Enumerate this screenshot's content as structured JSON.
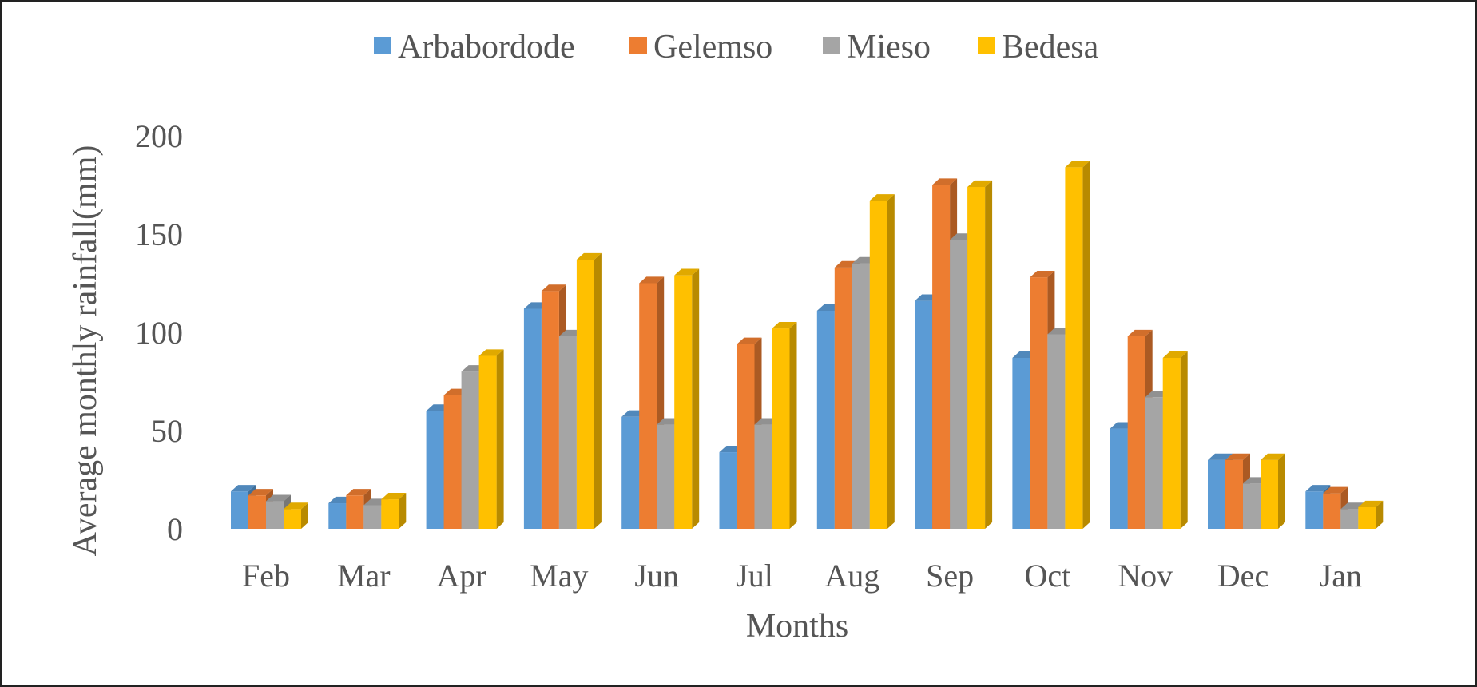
{
  "chart_data": {
    "type": "bar",
    "title": "",
    "xlabel": "Months",
    "ylabel": "Average monthly rainfall(mm)",
    "ylim": [
      0,
      200
    ],
    "yticks": [
      0,
      50,
      100,
      150,
      200
    ],
    "grid": false,
    "legend_position": "top",
    "categories": [
      "Feb",
      "Mar",
      "Apr",
      "May",
      "Jun",
      "Jul",
      "Aug",
      "Sep",
      "Oct",
      "Nov",
      "Dec",
      "Jan"
    ],
    "series": [
      {
        "name": "Arbabordode",
        "color": "#5B9BD5",
        "values": [
          19,
          13,
          60,
          112,
          57,
          39,
          111,
          116,
          87,
          51,
          35,
          19
        ]
      },
      {
        "name": "Gelemso",
        "color": "#ED7D31",
        "values": [
          17,
          17,
          68,
          121,
          125,
          94,
          133,
          175,
          128,
          98,
          35,
          18
        ]
      },
      {
        "name": "Mieso",
        "color": "#A5A5A5",
        "values": [
          14,
          12,
          80,
          98,
          53,
          53,
          135,
          147,
          99,
          67,
          23,
          10
        ]
      },
      {
        "name": "Bedesa",
        "color": "#FFC000",
        "values": [
          10,
          15,
          88,
          137,
          129,
          102,
          167,
          174,
          184,
          87,
          35,
          11
        ]
      }
    ]
  }
}
